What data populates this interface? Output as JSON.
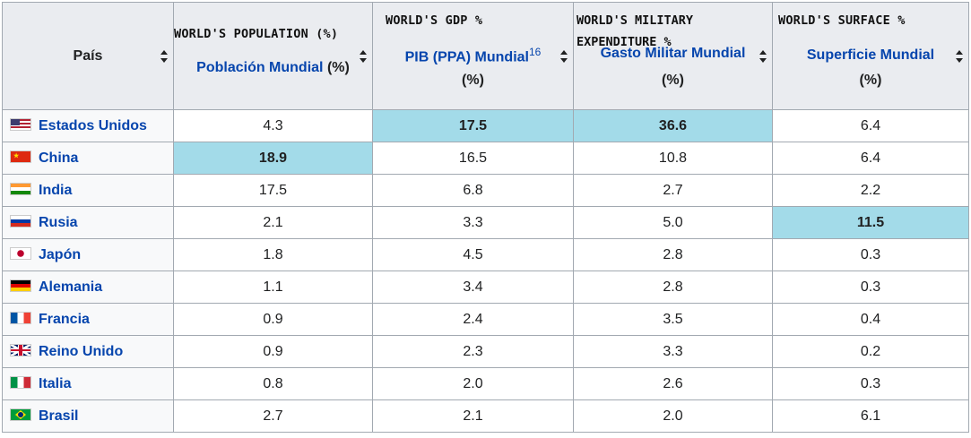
{
  "header": {
    "pais": "País",
    "population": {
      "annotation": "WORLD'S POPULATION (%)",
      "label": "Población Mundial",
      "unit": "(%)"
    },
    "gdp": {
      "annotation": "WORLD'S GDP %",
      "label": "PIB (PPA) Mundial",
      "sup": "16",
      "unit": "(%)"
    },
    "military": {
      "annotation_line1": "WORLD'S MILITARY",
      "annotation_line2": "EXPENDITURE %",
      "label": "Gasto Militar Mundial",
      "unit": "(%)"
    },
    "surface": {
      "annotation": "WORLD'S SURFACE %",
      "label": "Superficie Mundial",
      "unit": "(%)"
    }
  },
  "rows": [
    {
      "country": "Estados Unidos",
      "flag": "us-flag-icon",
      "population": "4.3",
      "gdp": "17.5",
      "military": "36.6",
      "surface": "6.4"
    },
    {
      "country": "China",
      "flag": "china-flag-icon",
      "population": "18.9",
      "gdp": "16.5",
      "military": "10.8",
      "surface": "6.4"
    },
    {
      "country": "India",
      "flag": "india-flag-icon",
      "population": "17.5",
      "gdp": "6.8",
      "military": "2.7",
      "surface": "2.2"
    },
    {
      "country": "Rusia",
      "flag": "russia-flag-icon",
      "population": "2.1",
      "gdp": "3.3",
      "military": "5.0",
      "surface": "11.5"
    },
    {
      "country": "Japón",
      "flag": "japan-flag-icon",
      "population": "1.8",
      "gdp": "4.5",
      "military": "2.8",
      "surface": "0.3"
    },
    {
      "country": "Alemania",
      "flag": "germany-flag-icon",
      "population": "1.1",
      "gdp": "3.4",
      "military": "2.8",
      "surface": "0.3"
    },
    {
      "country": "Francia",
      "flag": "france-flag-icon",
      "population": "0.9",
      "gdp": "2.4",
      "military": "3.5",
      "surface": "0.4"
    },
    {
      "country": "Reino Unido",
      "flag": "uk-flag-icon",
      "population": "0.9",
      "gdp": "2.3",
      "military": "3.3",
      "surface": "0.2"
    },
    {
      "country": "Italia",
      "flag": "italy-flag-icon",
      "population": "0.8",
      "gdp": "2.0",
      "military": "2.6",
      "surface": "0.3"
    },
    {
      "country": "Brasil",
      "flag": "brazil-flag-icon",
      "population": "2.7",
      "gdp": "2.1",
      "military": "2.0",
      "surface": "6.1"
    }
  ],
  "colors": {
    "highlight": "#a3dbe9",
    "link": "#0645ad",
    "header_bg": "#eaecf0"
  }
}
